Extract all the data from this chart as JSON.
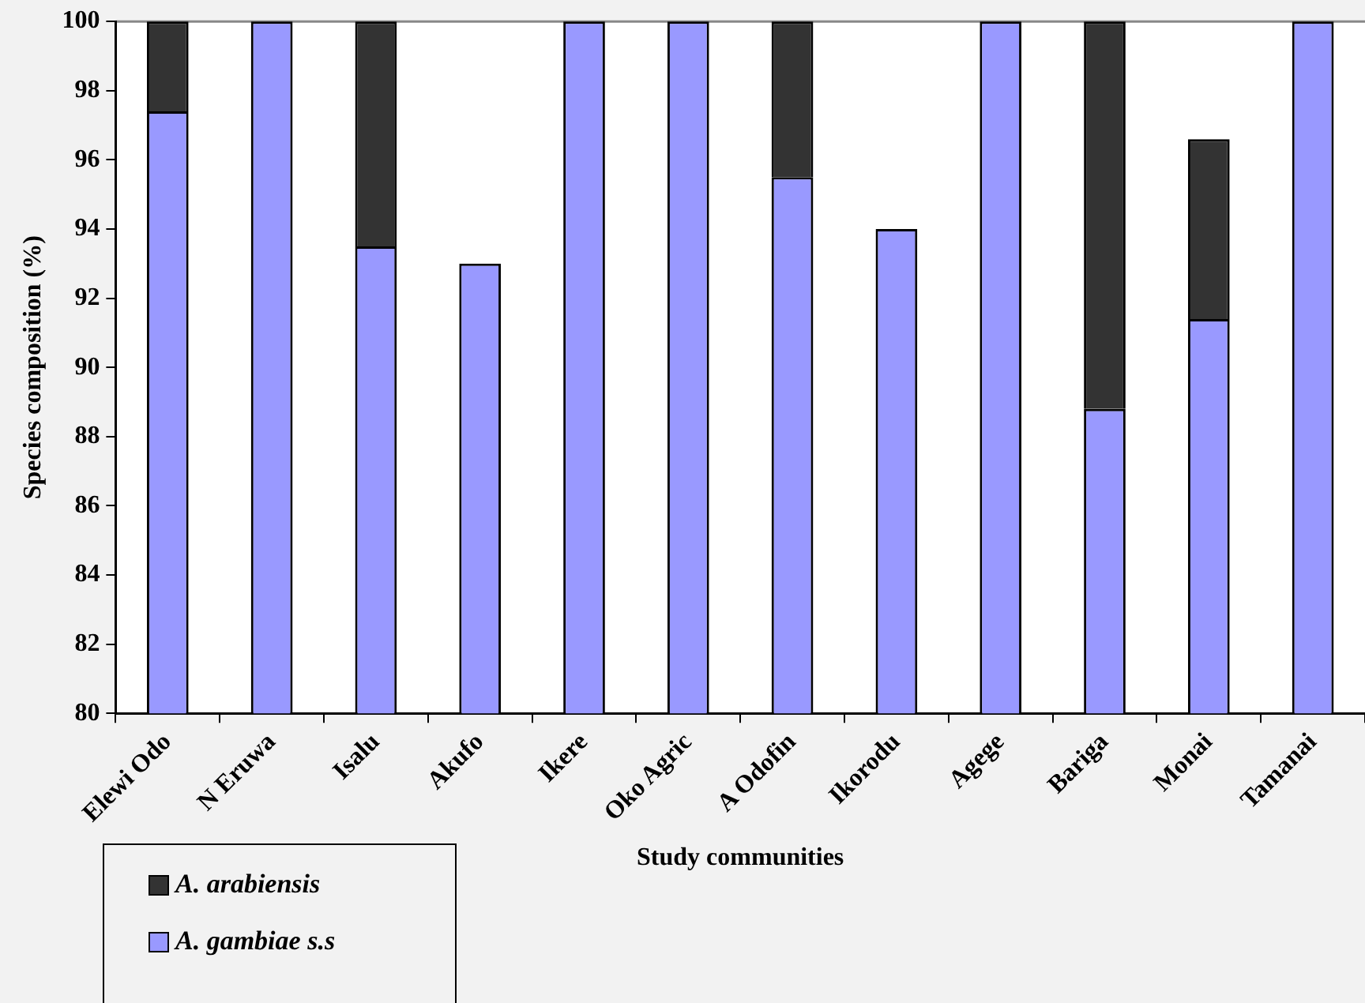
{
  "chart_data": {
    "type": "bar",
    "xlabel": "Study communities",
    "ylabel": "Species composition (%)",
    "categories": [
      "Elewi Odo",
      "N Eruwa",
      "Isalu",
      "Akufo",
      "Ikere",
      "Oko Agric",
      "A Odofin",
      "Ikorodu",
      "Agege",
      "Bariga",
      "Monai",
      "Tamanai"
    ],
    "series": [
      {
        "name": "A. gambiae s.s",
        "color": "#9999ff",
        "values": [
          97.4,
          100,
          93.5,
          93,
          100,
          100,
          95.5,
          94,
          100,
          88.8,
          91.4,
          100
        ]
      },
      {
        "name": "A. arabiensis",
        "color": "#333333",
        "base": [
          97.4,
          null,
          93.5,
          null,
          null,
          null,
          95.5,
          null,
          null,
          88.8,
          91.4,
          null
        ],
        "values": [
          2.6,
          null,
          6.5,
          null,
          null,
          null,
          4.5,
          null,
          null,
          11.2,
          5.2,
          null
        ]
      }
    ],
    "ylim": [
      80,
      100
    ],
    "yticks": [
      80,
      82,
      84,
      86,
      88,
      90,
      92,
      94,
      96,
      98,
      100
    ],
    "grid": false,
    "legend": "bottom left"
  }
}
